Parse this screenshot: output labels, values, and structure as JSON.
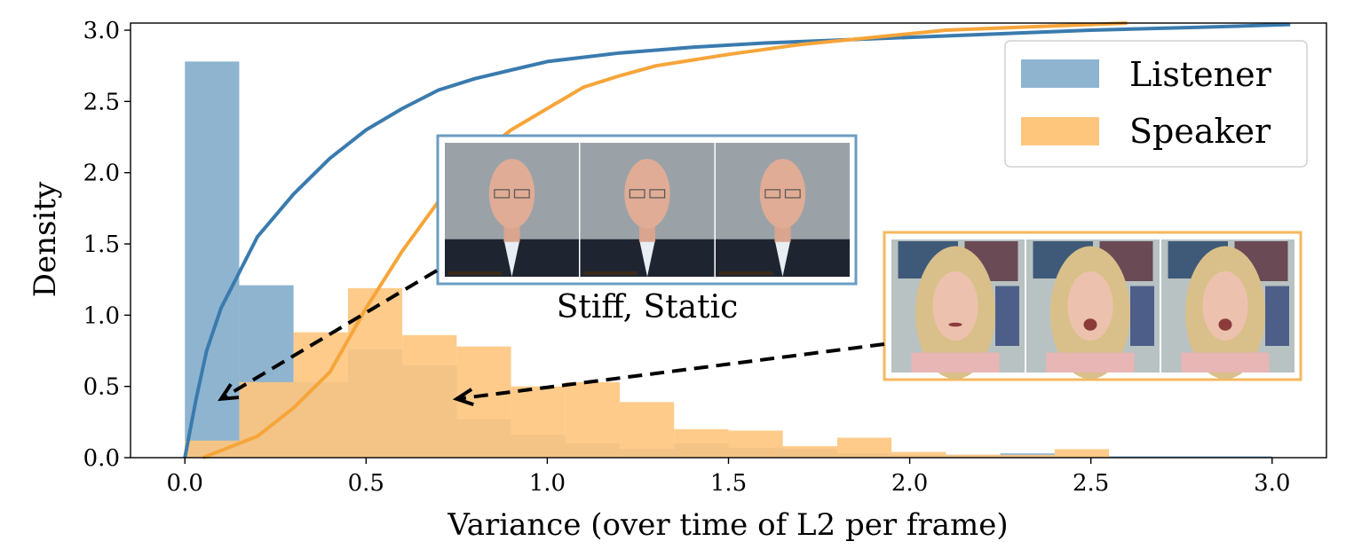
{
  "chart_data": {
    "type": "bar",
    "xlabel": "Variance (over time of L2 per frame)",
    "ylabel": "Density",
    "xlim": [
      -0.15,
      3.15
    ],
    "ylim": [
      0,
      3.05
    ],
    "xticks": [
      "0.0",
      "0.5",
      "1.0",
      "1.5",
      "2.0",
      "2.5",
      "3.0"
    ],
    "yticks": [
      "0.0",
      "0.5",
      "1.0",
      "1.5",
      "2.0",
      "2.5",
      "3.0"
    ],
    "grid": false,
    "legend_position": "top-right",
    "series": [
      {
        "name": "Listener",
        "color": "#1f77b4",
        "bin_edges": [
          0.0,
          0.15,
          0.3,
          0.45,
          0.6,
          0.75,
          0.9,
          1.05,
          1.2,
          1.35,
          1.5,
          1.65,
          1.8,
          1.95,
          2.1,
          2.25,
          2.4,
          2.55,
          2.7,
          2.85,
          3.0
        ],
        "values": [
          2.78,
          1.21,
          0.53,
          0.76,
          0.65,
          0.27,
          0.16,
          0.1,
          0.06,
          0.1,
          0.07,
          0.06,
          0.03,
          0.02,
          0.02,
          0.03,
          0.01,
          0.01,
          0.01,
          0.01
        ],
        "cdf_x": [
          0.0,
          0.03,
          0.06,
          0.1,
          0.15,
          0.2,
          0.3,
          0.4,
          0.5,
          0.6,
          0.7,
          0.8,
          0.9,
          1.0,
          1.2,
          1.4,
          1.6,
          1.8,
          2.0,
          2.2,
          2.5,
          2.8,
          3.05
        ],
        "cdf_y": [
          0.0,
          0.4,
          0.75,
          1.05,
          1.3,
          1.55,
          1.85,
          2.1,
          2.3,
          2.45,
          2.58,
          2.66,
          2.72,
          2.78,
          2.84,
          2.88,
          2.91,
          2.93,
          2.95,
          2.97,
          3.0,
          3.02,
          3.04
        ]
      },
      {
        "name": "Speaker",
        "color": "#ff7f0e",
        "bin_edges": [
          0.0,
          0.15,
          0.3,
          0.45,
          0.6,
          0.75,
          0.9,
          1.05,
          1.2,
          1.35,
          1.5,
          1.65,
          1.8,
          1.95,
          2.1,
          2.25,
          2.4,
          2.55
        ],
        "values": [
          0.12,
          0.53,
          0.88,
          1.19,
          0.86,
          0.78,
          0.5,
          0.53,
          0.39,
          0.2,
          0.19,
          0.08,
          0.14,
          0.04,
          0.02,
          0.02,
          0.06
        ],
        "cdf_x": [
          0.05,
          0.1,
          0.2,
          0.3,
          0.4,
          0.5,
          0.6,
          0.7,
          0.8,
          0.9,
          1.0,
          1.1,
          1.2,
          1.3,
          1.5,
          1.7,
          1.9,
          2.1,
          2.3,
          2.5,
          2.6
        ],
        "cdf_y": [
          0.0,
          0.05,
          0.15,
          0.35,
          0.6,
          1.05,
          1.45,
          1.8,
          2.1,
          2.3,
          2.45,
          2.6,
          2.68,
          2.75,
          2.83,
          2.9,
          2.95,
          3.0,
          3.02,
          3.04,
          3.05
        ]
      }
    ],
    "annotations": [
      {
        "text": "Stiff, Static",
        "arrow_to": [
          0.1,
          0.3
        ]
      },
      {
        "text": "",
        "arrow_to": [
          0.75,
          0.3
        ]
      }
    ]
  },
  "colors": {
    "listener_face": "#8fb4d0",
    "speaker_face": "#fec57d",
    "listener_line": "#3a7bae",
    "speaker_line": "#f6a53a",
    "listener_frame": "#6b9cc3",
    "speaker_frame": "#f5b85f"
  },
  "icons": {
    "listener_thumbnail": "bald-man-with-glasses-thumbnail",
    "speaker_thumbnail": "blonde-woman-talking-thumbnail"
  }
}
